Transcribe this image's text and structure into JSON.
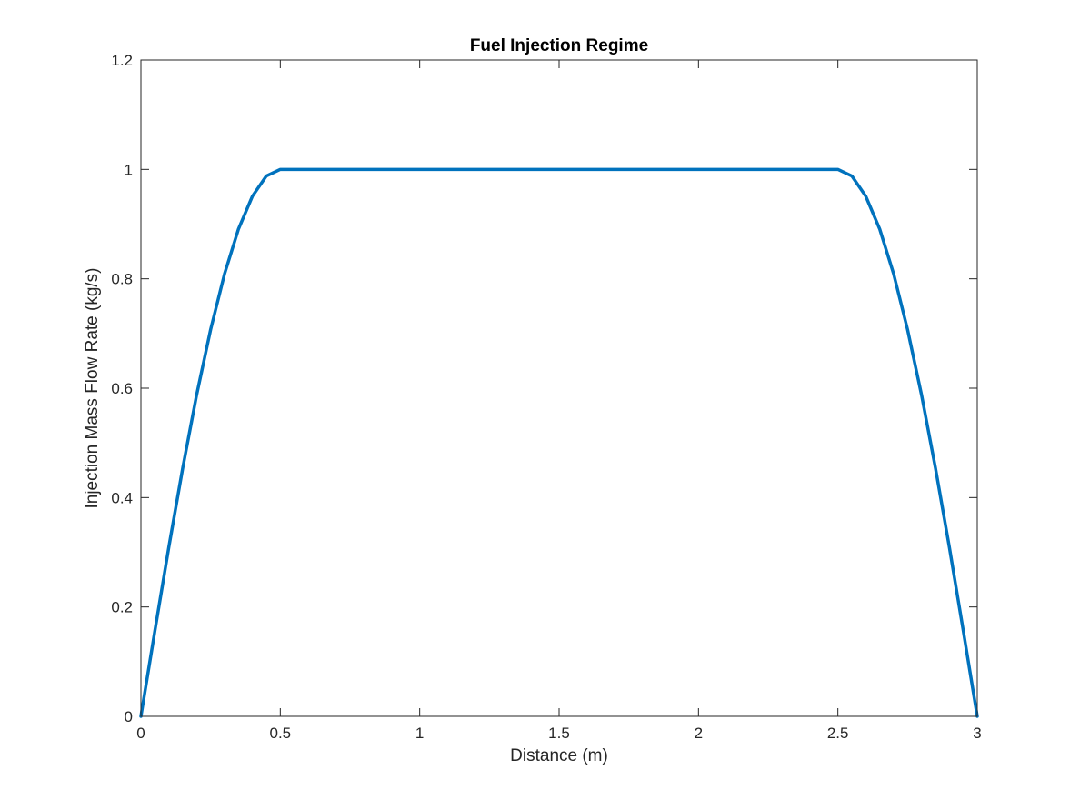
{
  "chart_data": {
    "type": "line",
    "title": "Fuel Injection Regime",
    "xlabel": "Distance (m)",
    "ylabel": "Injection Mass Flow Rate (kg/s)",
    "xlim": [
      0,
      3
    ],
    "ylim": [
      0,
      1.2
    ],
    "xticks": [
      0,
      0.5,
      1,
      1.5,
      2,
      2.5,
      3
    ],
    "xtick_labels": [
      "0",
      "0.5",
      "1",
      "1.5",
      "2",
      "2.5",
      "3"
    ],
    "yticks": [
      0,
      0.2,
      0.4,
      0.6,
      0.8,
      1,
      1.2
    ],
    "ytick_labels": [
      "0",
      "0.2",
      "0.4",
      "0.6",
      "0.8",
      "1",
      "1.2"
    ],
    "grid": false,
    "series": [
      {
        "color": "#0072bd",
        "x": [
          0,
          0.05,
          0.1,
          0.15,
          0.2,
          0.25,
          0.3,
          0.35,
          0.4,
          0.45,
          0.5,
          1.0,
          1.5,
          2.0,
          2.5,
          2.55,
          2.6,
          2.65,
          2.7,
          2.75,
          2.8,
          2.85,
          2.9,
          2.95,
          3.0
        ],
        "y": [
          0,
          0.156,
          0.309,
          0.454,
          0.588,
          0.707,
          0.809,
          0.891,
          0.951,
          0.988,
          1,
          1,
          1,
          1,
          1,
          0.988,
          0.951,
          0.891,
          0.809,
          0.707,
          0.588,
          0.454,
          0.309,
          0.156,
          0
        ]
      }
    ]
  }
}
